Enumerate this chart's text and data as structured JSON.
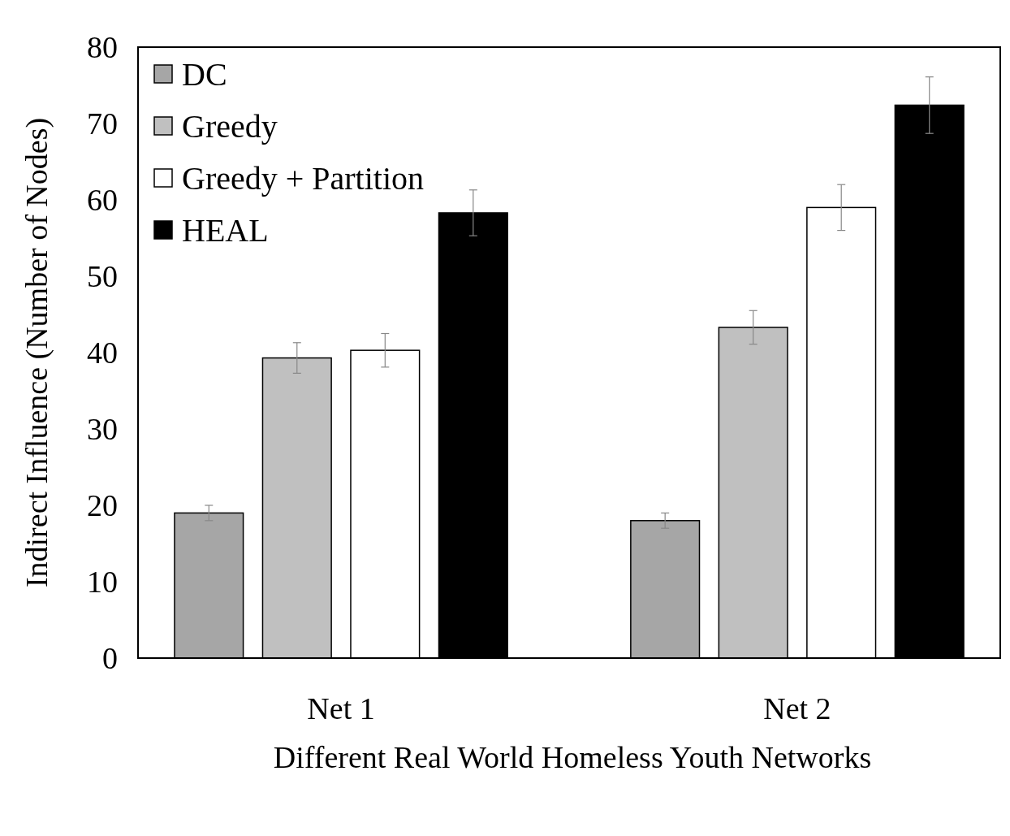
{
  "chart_data": {
    "type": "bar",
    "xlabel": "Different Real World Homeless Youth Networks",
    "ylabel": "Indirect Influence (Number of Nodes)",
    "categories": [
      "Net 1",
      "Net 2"
    ],
    "series": [
      {
        "name": "DC",
        "color": "#a6a6a6",
        "values": [
          19,
          18
        ],
        "errors": [
          1,
          1
        ]
      },
      {
        "name": "Greedy",
        "color": "#c0c0c0",
        "values": [
          39.3,
          43.3
        ],
        "errors": [
          2,
          2.2
        ]
      },
      {
        "name": "Greedy + Partition",
        "color": "#ffffff",
        "values": [
          40.3,
          59
        ],
        "errors": [
          2.2,
          3
        ]
      },
      {
        "name": "HEAL",
        "color": "#000000",
        "values": [
          58.3,
          72.4
        ],
        "errors": [
          3,
          3.7
        ]
      }
    ],
    "ylim": [
      0,
      80
    ],
    "yticks": [
      0,
      10,
      20,
      30,
      40,
      50,
      60,
      70,
      80
    ],
    "grid": false,
    "legend": "top left"
  }
}
